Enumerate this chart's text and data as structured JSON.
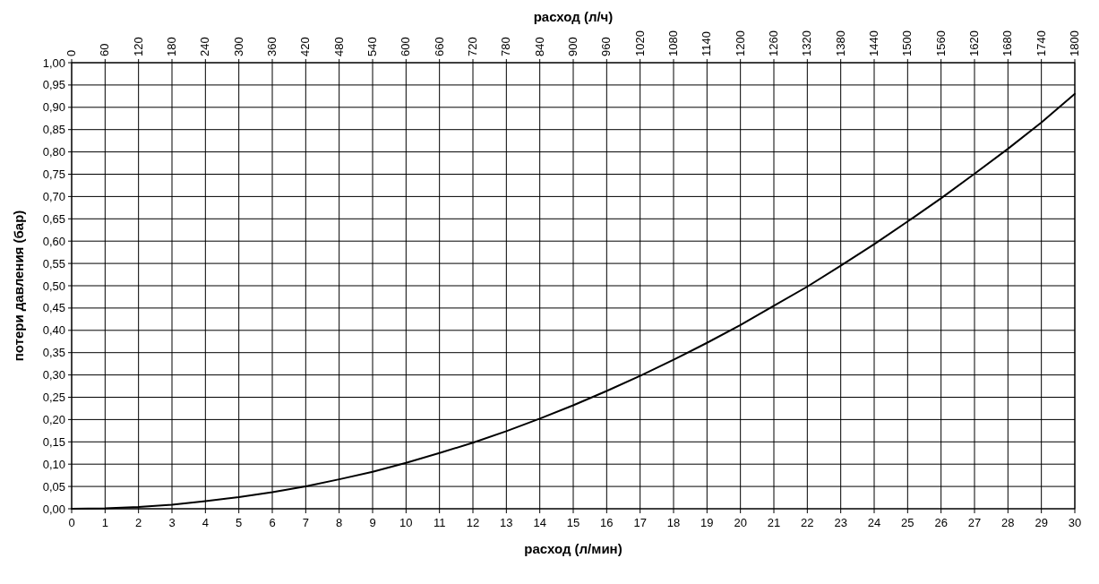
{
  "chart_data": {
    "type": "line",
    "xlabel": "расход (л/мин)",
    "ylabel": "потери давления (бар)",
    "x2label": "расход (л/ч)",
    "x": [
      0,
      1,
      2,
      3,
      4,
      5,
      6,
      7,
      8,
      9,
      10,
      11,
      12,
      13,
      14,
      15,
      16,
      17,
      18,
      19,
      20,
      21,
      22,
      23,
      24,
      25,
      26,
      27,
      28,
      29,
      30
    ],
    "series": [
      {
        "color": "#000000",
        "values": [
          0,
          0.001,
          0.004,
          0.009,
          0.017,
          0.026,
          0.037,
          0.05,
          0.066,
          0.083,
          0.103,
          0.125,
          0.148,
          0.174,
          0.202,
          0.232,
          0.264,
          0.298,
          0.334,
          0.372,
          0.412,
          0.455,
          0.498,
          0.545,
          0.593,
          0.644,
          0.696,
          0.751,
          0.807,
          0.866,
          0.93
        ]
      }
    ],
    "xlim": [
      0,
      30
    ],
    "xticks": [
      0,
      1,
      2,
      3,
      4,
      5,
      6,
      7,
      8,
      9,
      10,
      11,
      12,
      13,
      14,
      15,
      16,
      17,
      18,
      19,
      20,
      21,
      22,
      23,
      24,
      25,
      26,
      27,
      28,
      29,
      30
    ],
    "x2lim": [
      0,
      1800
    ],
    "x2ticks": [
      0,
      60,
      120,
      180,
      240,
      300,
      360,
      420,
      480,
      540,
      600,
      660,
      720,
      780,
      840,
      900,
      960,
      1020,
      1080,
      1140,
      1200,
      1260,
      1320,
      1380,
      1440,
      1500,
      1560,
      1620,
      1680,
      1740,
      1800
    ],
    "ylim": [
      0,
      1
    ],
    "yticks": [
      {
        "value": 0,
        "label": "0,00"
      },
      {
        "value": 0.05,
        "label": "0,05"
      },
      {
        "value": 0.1,
        "label": "0,10"
      },
      {
        "value": 0.15,
        "label": "0,15"
      },
      {
        "value": 0.2,
        "label": "0,20"
      },
      {
        "value": 0.25,
        "label": "0,25"
      },
      {
        "value": 0.3,
        "label": "0,30"
      },
      {
        "value": 0.35,
        "label": "0,35"
      },
      {
        "value": 0.4,
        "label": "0,40"
      },
      {
        "value": 0.45,
        "label": "0,45"
      },
      {
        "value": 0.5,
        "label": "0,50"
      },
      {
        "value": 0.55,
        "label": "0,55"
      },
      {
        "value": 0.6,
        "label": "0,60"
      },
      {
        "value": 0.65,
        "label": "0,65"
      },
      {
        "value": 0.7,
        "label": "0,70"
      },
      {
        "value": 0.75,
        "label": "0,75"
      },
      {
        "value": 0.8,
        "label": "0,80"
      },
      {
        "value": 0.85,
        "label": "0,85"
      },
      {
        "value": 0.9,
        "label": "0,90"
      },
      {
        "value": 0.95,
        "label": "0,95"
      },
      {
        "value": 1,
        "label": "1,00"
      }
    ],
    "grid": true,
    "marker": "none",
    "line_style": "solid"
  }
}
